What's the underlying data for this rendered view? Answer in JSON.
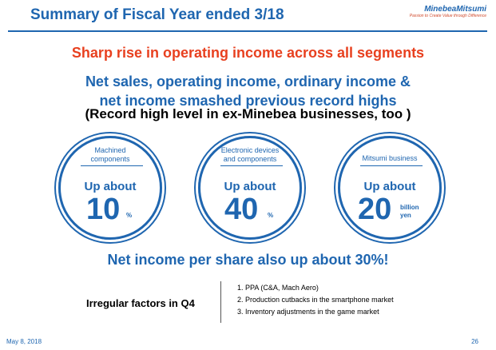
{
  "title": "Summary of Fiscal Year ended 3/18",
  "logo": {
    "name": "MinebeaMitsumi",
    "tagline": "Passion to Create Value through Difference"
  },
  "subtitle": "Sharp rise in operating income across all segments",
  "headline": {
    "line1": "Net sales, operating income, ordinary income &",
    "line2": "net income smashed previous record highs"
  },
  "note": "(Record high level in ex-Minebea businesses, too )",
  "segments": [
    {
      "label_line1": "Machined",
      "label_line2": "components",
      "up": "Up about",
      "value": "10",
      "unit": "%"
    },
    {
      "label_line1": "Electronic devices",
      "label_line2": "and components",
      "up": "Up about",
      "value": "40",
      "unit": "%"
    },
    {
      "label_line1": "Mitsumi business",
      "up": "Up about",
      "value": "20",
      "unit_line1": "billion",
      "unit_line2": "yen"
    }
  ],
  "eps": "Net income per share also up about 30%!",
  "irregular": {
    "label": "Irregular factors in Q4",
    "items": [
      "1. PPA (C&A, Mach Aero)",
      "2. Production cutbacks in the smartphone market",
      "3. Inventory adjustments in the game market"
    ]
  },
  "footer": {
    "date": "May 8, 2018",
    "page": "26"
  },
  "colors": {
    "primary": "#1f66b0",
    "accent": "#e8401f"
  }
}
